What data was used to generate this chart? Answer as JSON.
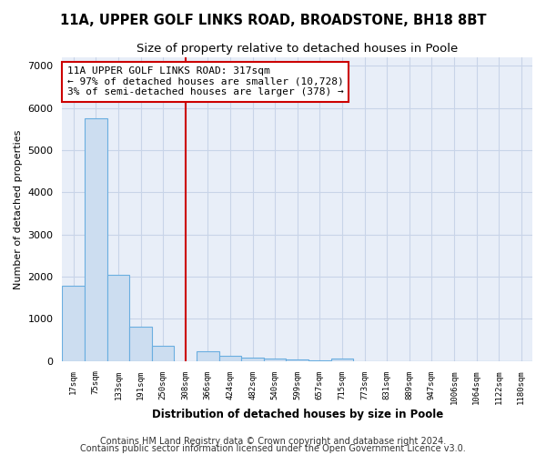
{
  "title1": "11A, UPPER GOLF LINKS ROAD, BROADSTONE, BH18 8BT",
  "title2": "Size of property relative to detached houses in Poole",
  "xlabel": "Distribution of detached houses by size in Poole",
  "ylabel": "Number of detached properties",
  "bar_labels": [
    "17sqm",
    "75sqm",
    "133sqm",
    "191sqm",
    "250sqm",
    "308sqm",
    "366sqm",
    "424sqm",
    "482sqm",
    "540sqm",
    "599sqm",
    "657sqm",
    "715sqm",
    "773sqm",
    "831sqm",
    "889sqm",
    "947sqm",
    "1006sqm",
    "1064sqm",
    "1122sqm",
    "1180sqm"
  ],
  "bar_values": [
    1780,
    5750,
    2050,
    820,
    365,
    0,
    220,
    115,
    80,
    55,
    35,
    20,
    65,
    0,
    0,
    0,
    0,
    0,
    0,
    0,
    0
  ],
  "bar_color": "#ccddf0",
  "bar_edge_color": "#6aaee0",
  "vline_x": 5.0,
  "vline_color": "#cc0000",
  "annotation_text": "11A UPPER GOLF LINKS ROAD: 317sqm\n← 97% of detached houses are smaller (10,728)\n3% of semi-detached houses are larger (378) →",
  "annotation_box_color": "white",
  "annotation_box_edge": "#cc0000",
  "ylim": [
    0,
    7200
  ],
  "yticks": [
    0,
    1000,
    2000,
    3000,
    4000,
    5000,
    6000,
    7000
  ],
  "grid_color": "#c8d4e8",
  "bg_color": "white",
  "plot_bg": "#e8eef8",
  "footnote1": "Contains HM Land Registry data © Crown copyright and database right 2024.",
  "footnote2": "Contains public sector information licensed under the Open Government Licence v3.0.",
  "footnote_fontsize": 7,
  "title1_fontsize": 10.5,
  "title2_fontsize": 9.5
}
